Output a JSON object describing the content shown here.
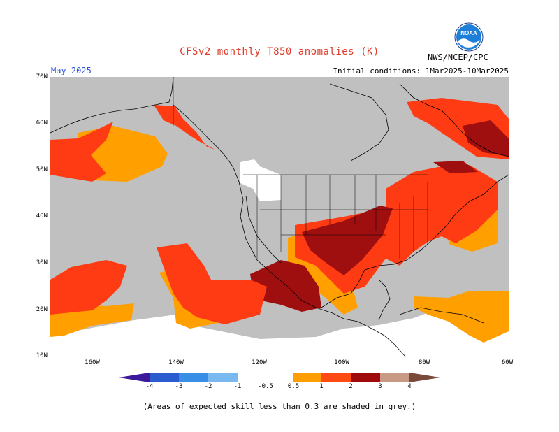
{
  "title": "CFSv2 monthly T850 anomalies (K)",
  "valid_month": "May 2025",
  "agency": "NWS/NCEP/CPC",
  "logo_text": "NOAA",
  "initial_conditions": "Initial conditions: 1Mar2025-10Mar2025",
  "lat_labels": [
    "70N",
    "60N",
    "50N",
    "40N",
    "30N",
    "20N",
    "10N"
  ],
  "lon_labels": [
    "160W",
    "140W",
    "120W",
    "100W",
    "80W",
    "60W"
  ],
  "colorbar": {
    "labels": [
      "-4",
      "-3",
      "-2",
      "-1",
      "-0.5",
      "0.5",
      "1",
      "2",
      "3",
      "4"
    ],
    "colors": [
      "#3a1a9a",
      "#2a5cd0",
      "#3a8ee6",
      "#7ab8f0",
      "#ffffff",
      "#ff9e00",
      "#ff4a14",
      "#a00a0a",
      "#c89a86",
      "#7a4a3a"
    ]
  },
  "footnote": "(Areas of expected skill less than 0.3 are shaded in grey.)",
  "colors": {
    "grey": "#c0c0c0",
    "orange": "#ffa000",
    "red": "#ff3b14",
    "darkred": "#a00f0f",
    "title": "#e03a2a",
    "month": "#2a55d6"
  }
}
